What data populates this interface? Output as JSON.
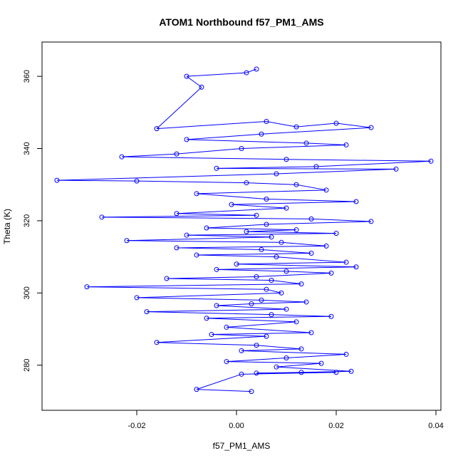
{
  "chart_data": {
    "type": "scatter",
    "title": "ATOM1 Northbound f57_PM1_AMS",
    "xlabel": "f57_PM1_AMS",
    "ylabel": "Theta (K)",
    "xlim": [
      -0.039,
      0.041
    ],
    "ylim": [
      267.5,
      369.5
    ],
    "x_ticks": [
      -0.02,
      0.0,
      0.02,
      0.04
    ],
    "x_tick_labels": [
      "-0.02",
      "0.00",
      "0.02",
      "0.04"
    ],
    "y_ticks": [
      280,
      300,
      320,
      340,
      360
    ],
    "y_tick_labels": [
      "280",
      "300",
      "320",
      "340",
      "360"
    ],
    "grid": false,
    "connected": true,
    "marker": "open-circle",
    "color": "#0000ff",
    "series": [
      {
        "values": [
          [
            0.004,
            362.0
          ],
          [
            0.002,
            361.0
          ],
          [
            -0.01,
            360.0
          ],
          [
            -0.007,
            357.0
          ],
          [
            -0.016,
            345.5
          ],
          [
            0.006,
            347.5
          ],
          [
            0.012,
            346.0
          ],
          [
            0.02,
            347.0
          ],
          [
            0.027,
            345.8
          ],
          [
            0.005,
            344.0
          ],
          [
            -0.01,
            342.5
          ],
          [
            0.014,
            341.5
          ],
          [
            0.022,
            341.0
          ],
          [
            0.001,
            340.0
          ],
          [
            -0.012,
            338.5
          ],
          [
            -0.023,
            337.7
          ],
          [
            0.01,
            337.0
          ],
          [
            0.039,
            336.5
          ],
          [
            0.016,
            335.0
          ],
          [
            -0.004,
            334.5
          ],
          [
            0.032,
            334.3
          ],
          [
            0.008,
            333.0
          ],
          [
            -0.036,
            331.2
          ],
          [
            -0.02,
            331.0
          ],
          [
            0.002,
            330.5
          ],
          [
            0.012,
            330.0
          ],
          [
            0.018,
            328.5
          ],
          [
            -0.008,
            327.5
          ],
          [
            0.006,
            326.0
          ],
          [
            0.024,
            325.3
          ],
          [
            -0.001,
            324.5
          ],
          [
            0.01,
            323.5
          ],
          [
            -0.012,
            322.0
          ],
          [
            0.004,
            321.5
          ],
          [
            -0.027,
            321.0
          ],
          [
            0.015,
            320.5
          ],
          [
            0.027,
            319.8
          ],
          [
            0.006,
            319.0
          ],
          [
            -0.006,
            318.0
          ],
          [
            0.012,
            317.5
          ],
          [
            0.002,
            317.0
          ],
          [
            0.02,
            316.5
          ],
          [
            -0.01,
            316.0
          ],
          [
            0.007,
            315.5
          ],
          [
            -0.022,
            314.5
          ],
          [
            0.009,
            314.0
          ],
          [
            0.018,
            313.0
          ],
          [
            -0.012,
            312.5
          ],
          [
            0.005,
            312.0
          ],
          [
            0.015,
            311.0
          ],
          [
            -0.008,
            310.5
          ],
          [
            0.008,
            310.0
          ],
          [
            0.022,
            308.5
          ],
          [
            0.0,
            308.0
          ],
          [
            0.024,
            307.2
          ],
          [
            -0.004,
            306.5
          ],
          [
            0.01,
            306.0
          ],
          [
            0.019,
            305.5
          ],
          [
            0.004,
            304.5
          ],
          [
            -0.014,
            304.0
          ],
          [
            0.007,
            303.5
          ],
          [
            0.013,
            302.5
          ],
          [
            -0.03,
            301.7
          ],
          [
            0.006,
            301.0
          ],
          [
            0.009,
            300.0
          ],
          [
            -0.02,
            298.7
          ],
          [
            0.005,
            298.0
          ],
          [
            0.014,
            297.5
          ],
          [
            0.003,
            297.0
          ],
          [
            -0.004,
            296.5
          ],
          [
            0.01,
            295.5
          ],
          [
            -0.018,
            294.8
          ],
          [
            0.007,
            294.0
          ],
          [
            0.019,
            293.5
          ],
          [
            -0.006,
            293.0
          ],
          [
            0.012,
            292.0
          ],
          [
            -0.002,
            290.5
          ],
          [
            0.015,
            289.0
          ],
          [
            -0.005,
            288.5
          ],
          [
            0.006,
            288.0
          ],
          [
            -0.016,
            286.3
          ],
          [
            0.004,
            285.5
          ],
          [
            0.013,
            284.5
          ],
          [
            0.001,
            284.0
          ],
          [
            0.022,
            283.0
          ],
          [
            0.01,
            282.0
          ],
          [
            -0.002,
            281.0
          ],
          [
            0.017,
            280.5
          ],
          [
            0.008,
            279.5
          ],
          [
            0.023,
            278.3
          ],
          [
            0.013,
            278.0
          ],
          [
            0.004,
            277.8
          ],
          [
            0.02,
            278.0
          ],
          [
            0.001,
            277.5
          ],
          [
            -0.008,
            273.3
          ],
          [
            0.003,
            272.7
          ]
        ]
      }
    ]
  }
}
